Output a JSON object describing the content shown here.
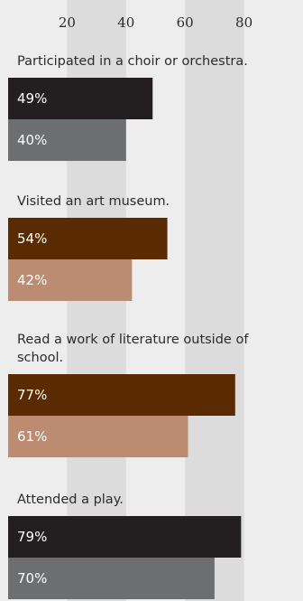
{
  "chart_data": {
    "type": "bar",
    "orientation": "horizontal",
    "x_ticks": [
      20,
      40,
      60,
      80
    ],
    "xlim": [
      0,
      100
    ],
    "grid": "alternating vertical bands",
    "groups": [
      {
        "label": "Participated in a choir or orchestra.",
        "bars": [
          {
            "value": 49,
            "label": "49%",
            "color": "#231f20"
          },
          {
            "value": 40,
            "label": "40%",
            "color": "#6d6e70"
          }
        ]
      },
      {
        "label": "Visited an art museum.",
        "bars": [
          {
            "value": 54,
            "label": "54%",
            "color": "#5a2a00"
          },
          {
            "value": 42,
            "label": "42%",
            "color": "#bb8c72"
          }
        ]
      },
      {
        "label": "Read a work of literature outside of school.",
        "bars": [
          {
            "value": 77,
            "label": "77%",
            "color": "#5a2a00"
          },
          {
            "value": 61,
            "label": "61%",
            "color": "#bb8c72"
          }
        ]
      },
      {
        "label": "Attended a play.",
        "bars": [
          {
            "value": 79,
            "label": "79%",
            "color": "#231f20"
          },
          {
            "value": 70,
            "label": "70%",
            "color": "#6d6e70"
          }
        ]
      }
    ]
  }
}
